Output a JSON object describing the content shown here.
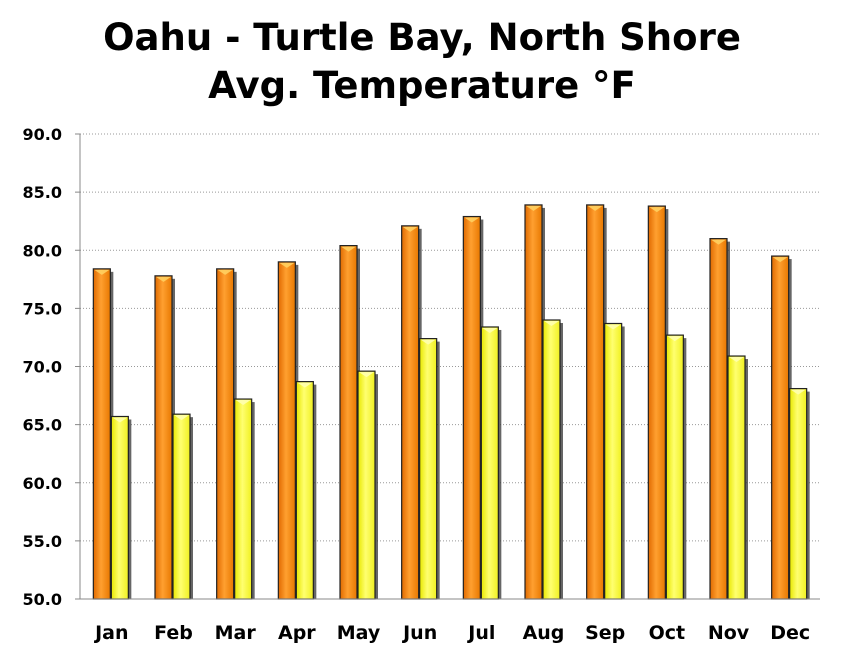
{
  "chart_data": {
    "type": "bar",
    "title": "Oahu - Turtle Bay, North Shore",
    "subtitle": "Avg. Temperature °F",
    "xlabel": "",
    "ylabel": "",
    "categories": [
      "Jan",
      "Feb",
      "Mar",
      "Apr",
      "May",
      "Jun",
      "Jul",
      "Aug",
      "Sep",
      "Oct",
      "Nov",
      "Dec"
    ],
    "series": [
      {
        "values": [
          78.4,
          77.8,
          78.4,
          79.0,
          80.4,
          82.1,
          82.9,
          83.9,
          83.9,
          83.8,
          81.0,
          79.5
        ],
        "color": "#ff8c00"
      },
      {
        "values": [
          65.7,
          65.9,
          67.2,
          68.7,
          69.6,
          72.4,
          73.4,
          74.0,
          73.7,
          72.7,
          70.9,
          68.1
        ],
        "color": "#ffff33"
      }
    ],
    "ylim": [
      50,
      90
    ],
    "yticks": [
      "50.0",
      "55.0",
      "60.0",
      "65.0",
      "70.0",
      "75.0",
      "80.0",
      "85.0",
      "90.0"
    ],
    "grid": true,
    "legend": "none"
  }
}
